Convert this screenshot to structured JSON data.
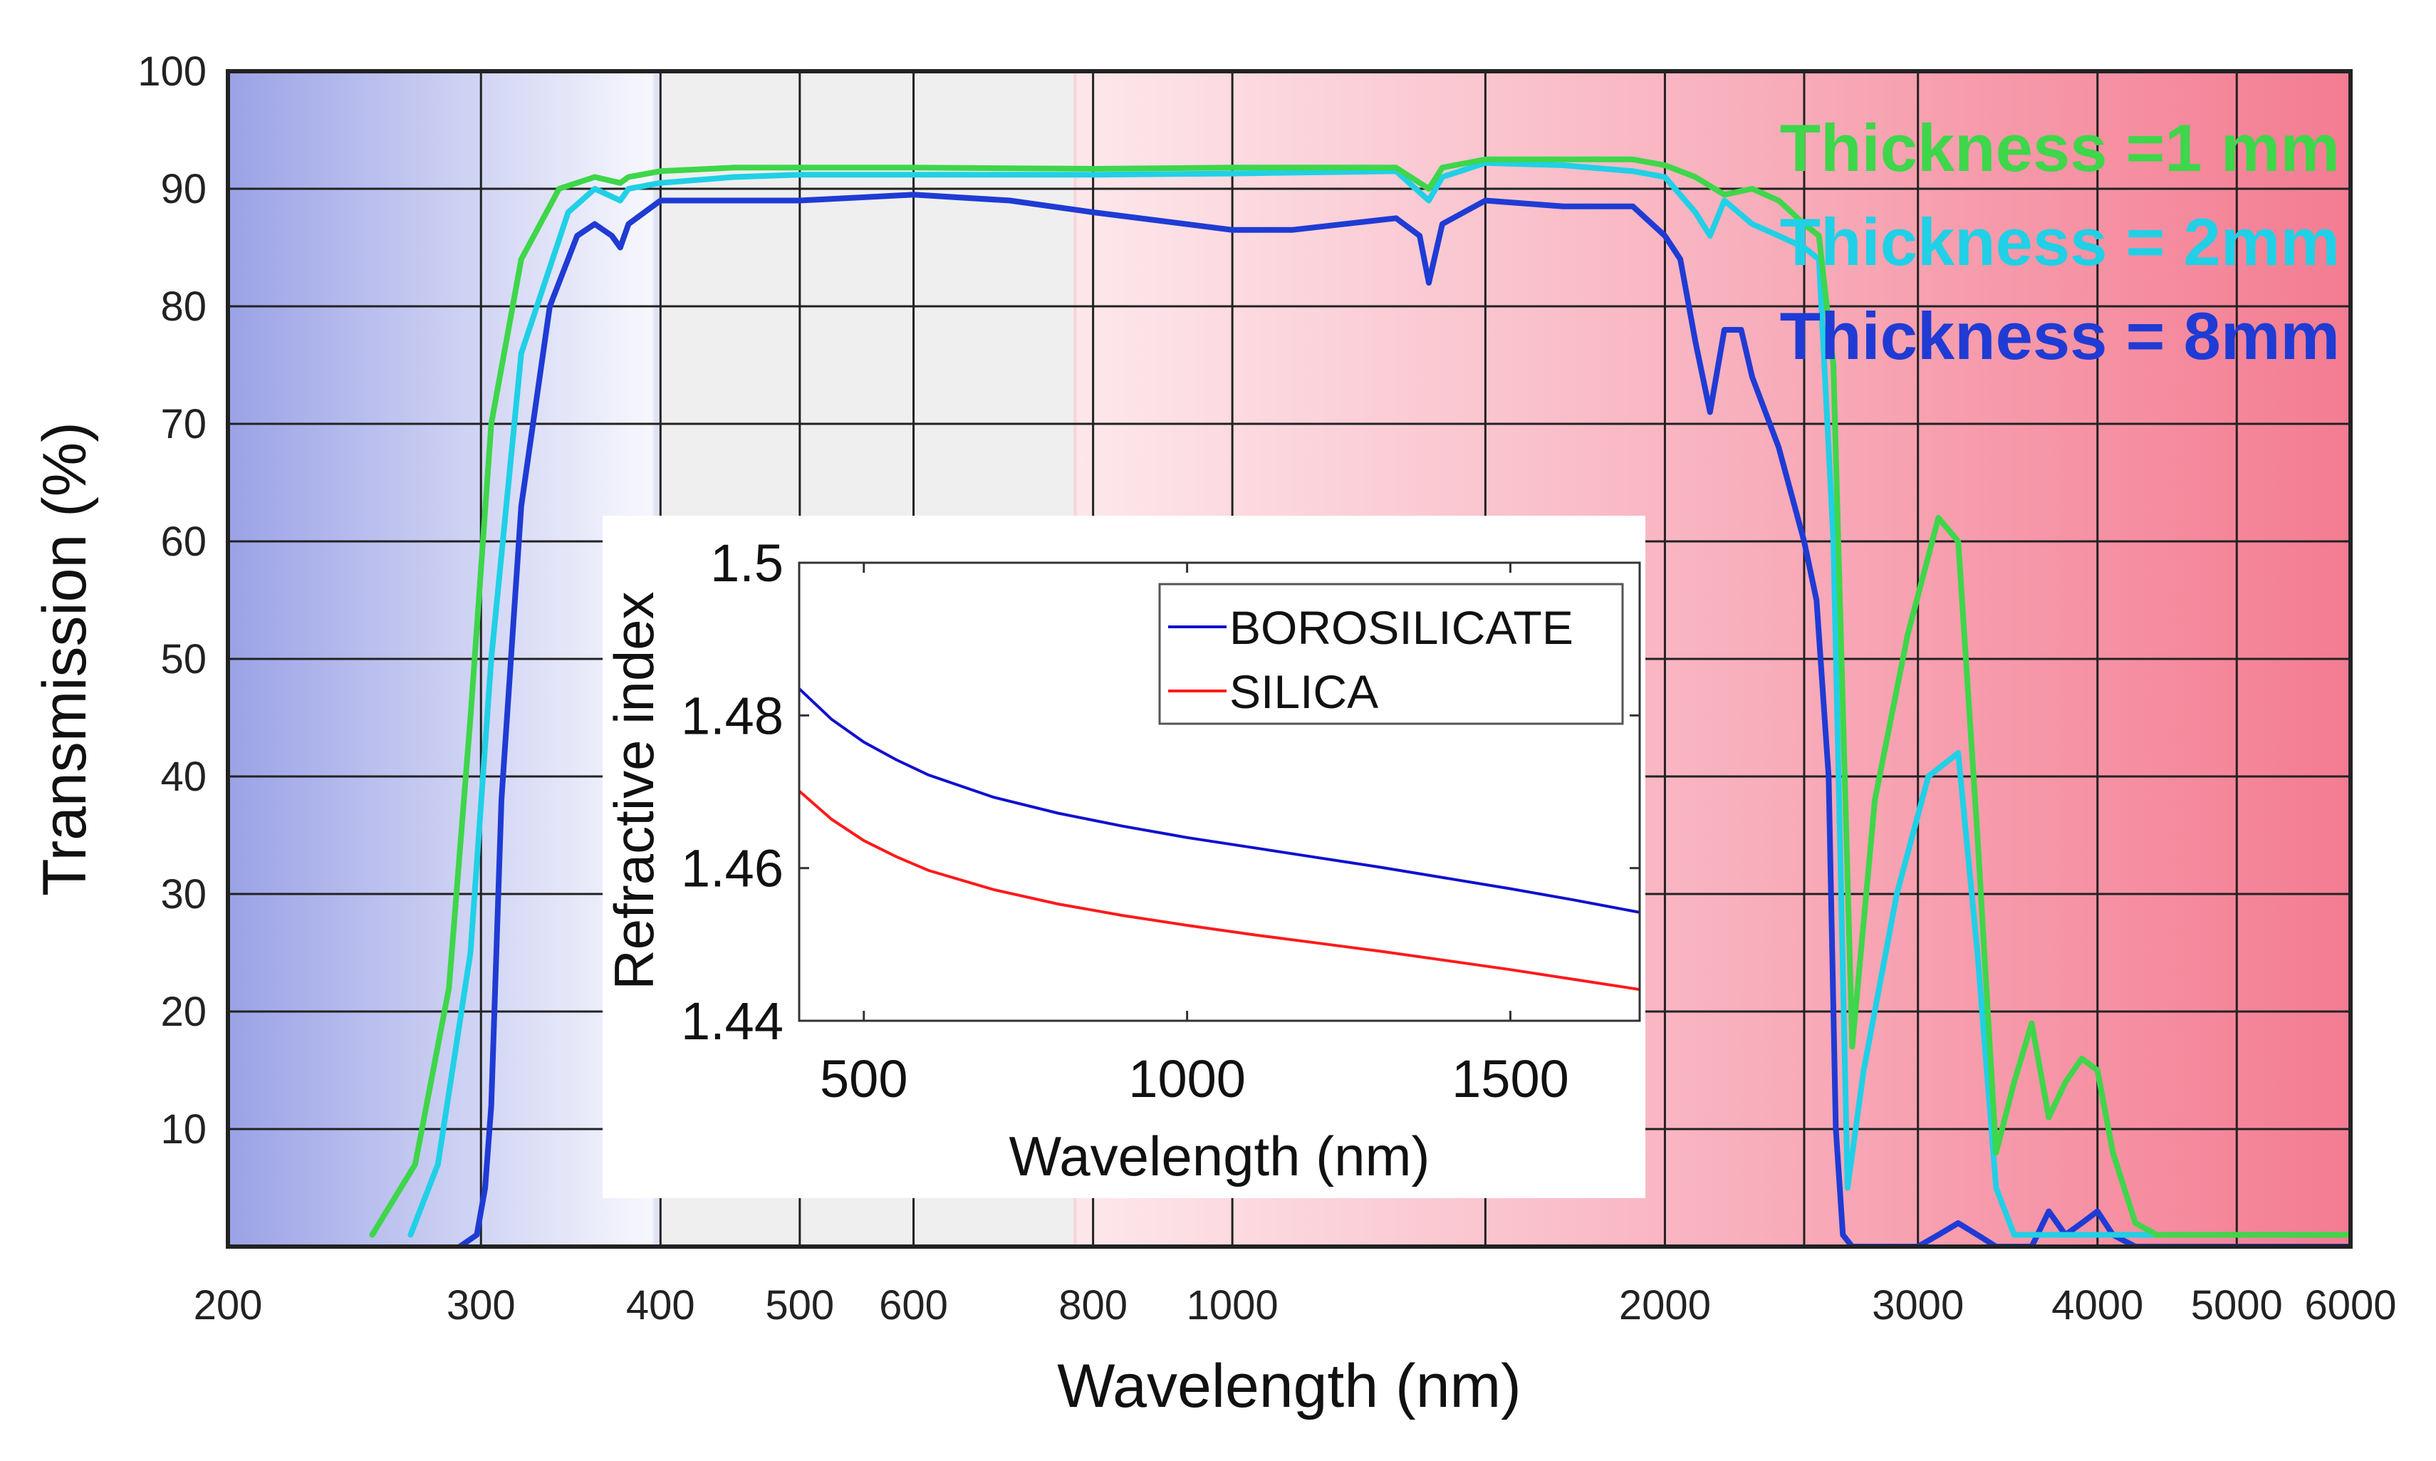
{
  "chart_data": [
    {
      "type": "line",
      "xlabel": "Wavelength (nm)",
      "ylabel": "Transmission (%)",
      "x_scale": "log",
      "xlim": [
        200,
        6000
      ],
      "ylim": [
        0,
        100
      ],
      "x_ticks": [
        200,
        300,
        400,
        500,
        600,
        800,
        1000,
        2000,
        3000,
        4000,
        5000,
        6000
      ],
      "x_tick_labels": [
        "200",
        "300",
        "400",
        "500",
        "600",
        "800",
        "1000",
        "2000",
        "3000",
        "4000",
        "5000",
        "6000"
      ],
      "x_grid": [
        200,
        300,
        400,
        500,
        600,
        800,
        1000,
        1500,
        2000,
        2500,
        3000,
        4000,
        5000,
        6000
      ],
      "y_ticks": [
        10,
        20,
        30,
        40,
        50,
        60,
        70,
        80,
        90,
        100
      ],
      "y_tick_labels": [
        "10",
        "20",
        "30",
        "40",
        "50",
        "60",
        "70",
        "80",
        "90",
        "100"
      ],
      "grid": true,
      "legend_position": "top-right",
      "background_bands": [
        {
          "from": 200,
          "to": 400,
          "color": "#9aa2e6"
        },
        {
          "from": 400,
          "to": 780,
          "color": "#efefef"
        },
        {
          "from": 780,
          "to": 6000,
          "color": "#f47c92"
        }
      ],
      "series": [
        {
          "name": "Thickness =1 mm",
          "color": "#3ed64a",
          "x": [
            252,
            270,
            285,
            295,
            305,
            320,
            340,
            360,
            375,
            380,
            400,
            450,
            500,
            600,
            800,
            1000,
            1300,
            1370,
            1400,
            1500,
            1700,
            1900,
            2000,
            2100,
            2200,
            2300,
            2400,
            2500,
            2560,
            2620,
            2700,
            2800,
            2950,
            3100,
            3200,
            3300,
            3400,
            3500,
            3600,
            3700,
            3800,
            3900,
            4000,
            4100,
            4250,
            4400,
            4600,
            5000,
            6000
          ],
          "y": [
            1,
            7,
            22,
            45,
            70,
            84,
            90,
            91,
            90.5,
            91,
            91.5,
            91.8,
            91.8,
            91.8,
            91.7,
            91.8,
            91.8,
            90,
            91.8,
            92.5,
            92.5,
            92.5,
            92,
            91,
            89.5,
            90,
            89,
            87,
            86,
            75,
            17,
            38,
            52,
            62,
            60,
            35,
            8,
            14,
            19,
            11,
            14,
            16,
            15,
            8,
            2,
            1,
            1,
            1,
            1
          ]
        },
        {
          "name": "Thickness = 2mm",
          "color": "#20d0e6",
          "x": [
            268,
            280,
            295,
            305,
            320,
            345,
            360,
            375,
            380,
            400,
            450,
            500,
            600,
            800,
            1000,
            1300,
            1370,
            1400,
            1500,
            1700,
            1900,
            2000,
            2100,
            2150,
            2200,
            2300,
            2400,
            2500,
            2560,
            2620,
            2680,
            2750,
            2900,
            3050,
            3200,
            3300,
            3400,
            3500,
            3700,
            4000,
            4500
          ],
          "y": [
            1,
            7,
            25,
            50,
            76,
            88,
            90,
            89,
            90,
            90.5,
            91,
            91.2,
            91.2,
            91.2,
            91.3,
            91.5,
            89,
            91,
            92.2,
            92,
            91.5,
            91,
            88,
            86,
            89,
            87,
            86,
            85,
            84,
            60,
            5,
            15,
            30,
            40,
            42,
            25,
            5,
            1,
            1,
            1,
            1
          ]
        },
        {
          "name": "Thickness = 8mm",
          "color": "#1f3bd4",
          "x": [
            290,
            298,
            302,
            305,
            310,
            320,
            335,
            350,
            360,
            370,
            375,
            380,
            400,
            450,
            500,
            600,
            700,
            800,
            1000,
            1100,
            1300,
            1350,
            1370,
            1400,
            1500,
            1700,
            1900,
            2000,
            2050,
            2100,
            2150,
            2200,
            2260,
            2300,
            2400,
            2500,
            2550,
            2600,
            2630,
            2660,
            2700,
            3000,
            3100,
            3200,
            3300,
            3400,
            3500,
            3600,
            3700,
            3800,
            3900,
            4000,
            4100,
            4250,
            4500,
            6000
          ],
          "y": [
            0,
            1,
            5,
            12,
            38,
            63,
            80,
            86,
            87,
            86,
            85,
            87,
            89,
            89,
            89,
            89.5,
            89,
            88,
            86.5,
            86.5,
            87.5,
            86,
            82,
            87,
            89,
            88.5,
            88.5,
            86,
            84,
            77,
            71,
            78,
            78,
            74,
            68,
            60,
            55,
            40,
            10,
            1,
            0,
            0,
            1,
            2,
            1,
            0,
            0,
            0,
            3,
            1,
            2,
            3,
            1,
            0,
            0,
            0
          ]
        }
      ]
    },
    {
      "type": "line",
      "xlabel": "Wavelength (nm)",
      "ylabel": "Refractive index",
      "xlim": [
        400,
        1700
      ],
      "ylim": [
        1.44,
        1.5
      ],
      "x_ticks": [
        500,
        1000,
        1500
      ],
      "x_tick_labels": [
        "500",
        "1000",
        "1500"
      ],
      "y_ticks": [
        1.44,
        1.46,
        1.48,
        1.5
      ],
      "y_tick_labels": [
        "1.44",
        "1.46",
        "1.48",
        "1.5"
      ],
      "grid": false,
      "legend_position": "top-right",
      "series": [
        {
          "name": "BOROSILICATE",
          "color": "#1010d0",
          "x": [
            400,
            450,
            500,
            550,
            600,
            700,
            800,
            900,
            1000,
            1100,
            1200,
            1300,
            1400,
            1500,
            1600,
            1700
          ],
          "y": [
            1.4835,
            1.4795,
            1.4765,
            1.4742,
            1.4722,
            1.4693,
            1.4672,
            1.4655,
            1.464,
            1.4627,
            1.4614,
            1.4601,
            1.4587,
            1.4573,
            1.4558,
            1.4542
          ]
        },
        {
          "name": "SILICA",
          "color": "#ff1a1a",
          "x": [
            400,
            450,
            500,
            550,
            600,
            700,
            800,
            900,
            1000,
            1100,
            1200,
            1300,
            1400,
            1500,
            1600,
            1700
          ],
          "y": [
            1.4701,
            1.4664,
            1.4636,
            1.4615,
            1.4597,
            1.4572,
            1.4553,
            1.4538,
            1.4525,
            1.4513,
            1.4502,
            1.4491,
            1.4479,
            1.4467,
            1.4454,
            1.4441
          ]
        }
      ]
    }
  ]
}
